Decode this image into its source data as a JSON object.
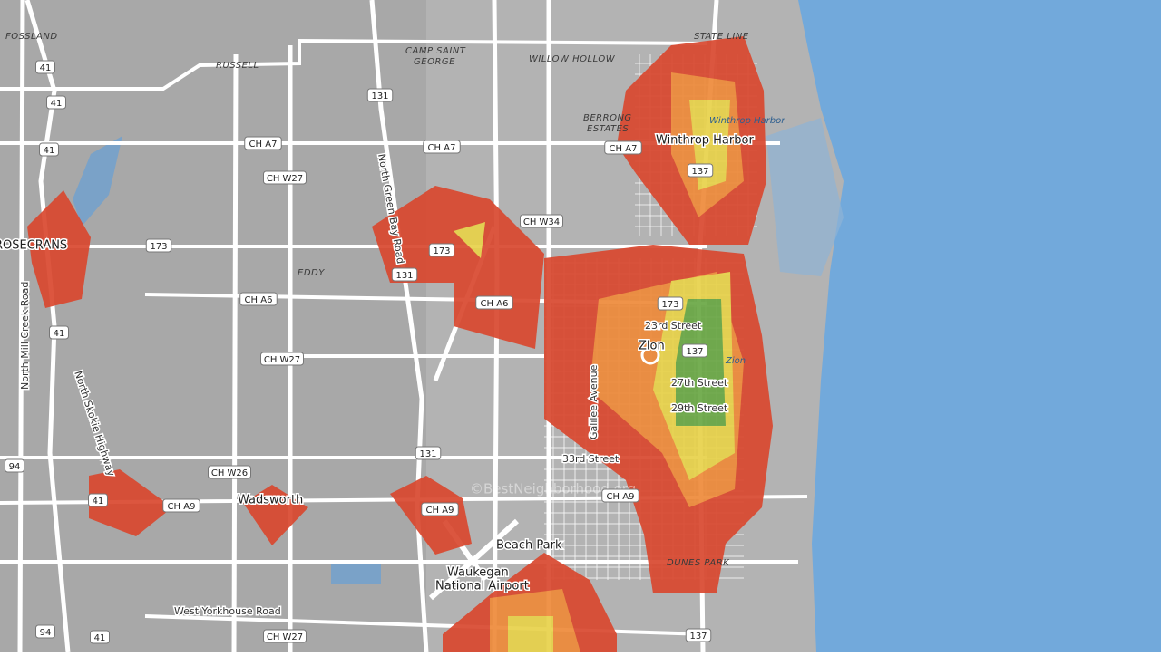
{
  "places": [
    "FOSSLAND",
    "RUSSELL",
    "CAMP SAINT",
    "GEORGE",
    "WILLOW HOLLOW",
    "STATE LINE",
    "BERRONG",
    "ESTATES",
    "EDDY",
    "DUNES PARK"
  ],
  "towns": [
    "Winthrop Harbor",
    "ROSECRANS",
    "Zion",
    "Wadsworth",
    "Beach Park",
    "Waukegan",
    "National Airport"
  ],
  "water_labels": [
    "Winthrop Harbor",
    "Zion"
  ],
  "road_labels": [
    "North Green Bay Road",
    "North Mill Creek Road",
    "North Skokie Highway",
    "Galilee Avenue",
    "West Yorkhouse Road",
    "23rd Street",
    "27th Street",
    "29th Street",
    "33rd Street"
  ],
  "shields": [
    "41",
    "41",
    "41",
    "41",
    "41",
    "41",
    "94",
    "94",
    "131",
    "131",
    "131",
    "CH A7",
    "CH A7",
    "CH A7",
    "CH W27",
    "CH W27",
    "CH W27",
    "CH W34",
    "173",
    "173",
    "173",
    "CH A6",
    "CH A6",
    "137",
    "137",
    "137",
    "CH W26",
    "CH A9",
    "CH A9",
    "CH A9"
  ],
  "watermark": "©BestNeighborhood.org"
}
